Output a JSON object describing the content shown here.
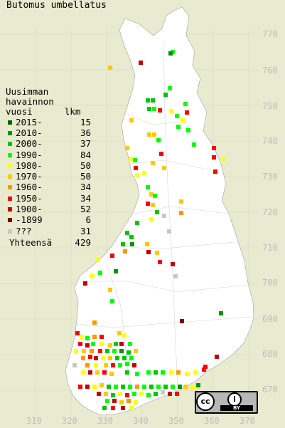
{
  "title": "Butomus umbellatus",
  "legend": {
    "heading": [
      "Uusimman",
      "havainnon",
      "vuosi      lkm"
    ],
    "items": [
      {
        "label": "2015-",
        "count": "15",
        "color": "#006400"
      },
      {
        "label": "2010-",
        "count": "36",
        "color": "#009600"
      },
      {
        "label": "2000-",
        "count": "37",
        "color": "#00c800"
      },
      {
        "label": "1990-",
        "count": "84",
        "color": "#00ff00"
      },
      {
        "label": "1980-",
        "count": "50",
        "color": "#ffff00"
      },
      {
        "label": "1970-",
        "count": "50",
        "color": "#ffc800"
      },
      {
        "label": "1960-",
        "count": "34",
        "color": "#ff9600"
      },
      {
        "label": "1950-",
        "count": "34",
        "color": "#ff0000"
      },
      {
        "label": "1900-",
        "count": "52",
        "color": "#c80000"
      },
      {
        "label": "-1899",
        "count": "6",
        "color": "#780000"
      },
      {
        "label": "???",
        "count": "31",
        "color": "#c8c8c8"
      }
    ],
    "total_label": "Yhteensä",
    "total_count": "429"
  },
  "axes": {
    "y_labels": [
      "770",
      "760",
      "750",
      "740",
      "730",
      "720",
      "710",
      "700",
      "690",
      "680",
      "670"
    ],
    "x_labels": [
      "310",
      "320",
      "330",
      "340",
      "350",
      "360",
      "370"
    ]
  },
  "license_badge": {
    "cc": "cc",
    "by": "BY",
    "icon": "creative-commons-by-icon"
  },
  "colors": {
    "background": "#e8ebcf",
    "land": "#ffffff",
    "grid": "#c8c8c8"
  }
}
